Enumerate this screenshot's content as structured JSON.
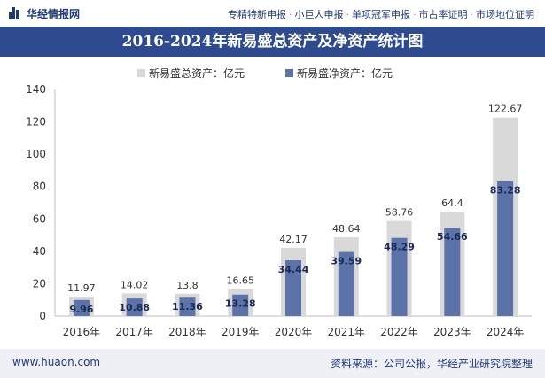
{
  "header": {
    "brand": "华经情报网",
    "services": [
      "专精特新申报",
      "小巨人申报",
      "单项冠军申报",
      "市占率证明",
      "市场地位证明"
    ],
    "separator": "·"
  },
  "colors": {
    "title_bg": "#2e4b8f",
    "total_bar": "#d9d9d9",
    "net_bar": "#5b73a8",
    "brand": "#1f3a78"
  },
  "footer": {
    "website": "www.huaon.com",
    "source": "资料来源：公司公报，华经产业研究院整理"
  },
  "chart_data": {
    "type": "bar",
    "title": "2016-2024年新易盛总资产及净资产统计图",
    "categories": [
      "2016年",
      "2017年",
      "2018年",
      "2019年",
      "2020年",
      "2021年",
      "2022年",
      "2023年",
      "2024年"
    ],
    "series": [
      {
        "name": "新易盛总资产：亿元",
        "values": [
          11.97,
          14.02,
          13.8,
          16.65,
          42.17,
          48.64,
          58.76,
          64.4,
          122.67
        ],
        "labels": [
          "11.97",
          "14.02",
          "13.8",
          "16.65",
          "42.17",
          "48.64",
          "58.76",
          "64.4",
          "122.67"
        ]
      },
      {
        "name": "新易盛净资产：亿元",
        "values": [
          9.96,
          10.88,
          11.36,
          13.28,
          34.44,
          39.59,
          48.29,
          54.66,
          83.28
        ],
        "labels": [
          "9.96",
          "10.88",
          "11.36",
          "13.28",
          "34.44",
          "39.59",
          "48.29",
          "54.66",
          "83.28"
        ]
      }
    ],
    "ylim": [
      0,
      140
    ],
    "yticks": [
      0,
      20,
      40,
      60,
      80,
      100,
      120,
      140
    ],
    "grid": false,
    "legend_position": "top-center",
    "xlabel": "",
    "ylabel": ""
  }
}
